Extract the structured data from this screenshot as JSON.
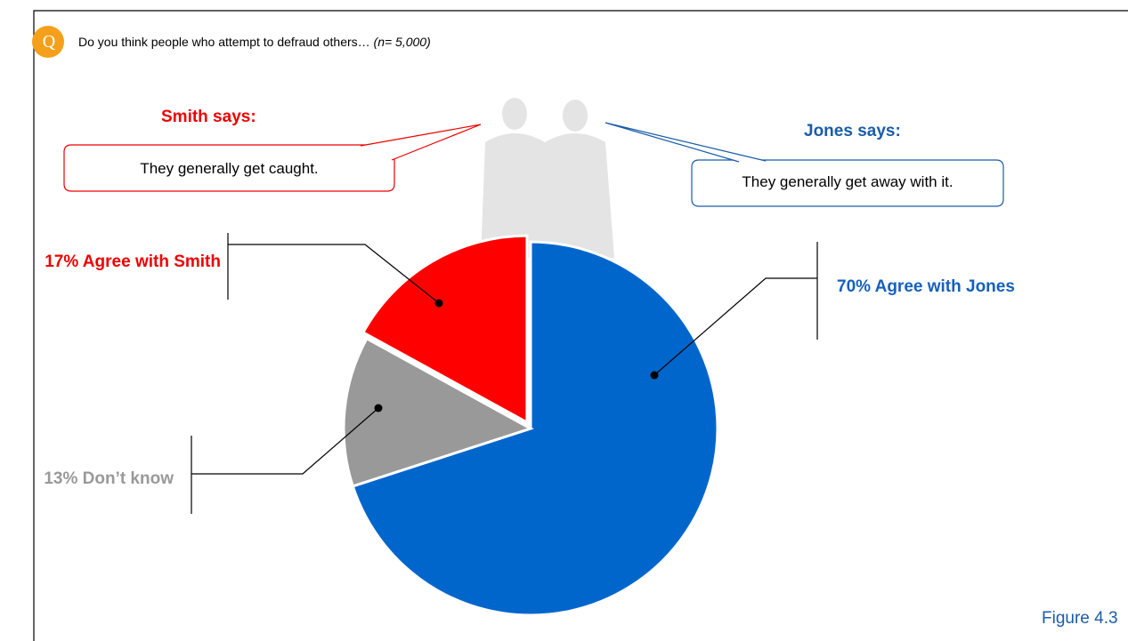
{
  "q_badge": "Q",
  "question": "Do you think people who attempt to defraud others…",
  "sample_size": "(n= 5,000)",
  "smith": {
    "heading": "Smith says:",
    "quote": "They generally get caught."
  },
  "jones": {
    "heading": "Jones says:",
    "quote": "They generally get away with it."
  },
  "figure": "Figure 4.3",
  "chart_data": {
    "type": "pie",
    "values": [
      70,
      13,
      17
    ],
    "value_labels": [
      "70% Agree with Jones",
      "13% Don’t know",
      "17% Agree with Smith"
    ],
    "colors": [
      "#0066CC",
      "#999999",
      "#FF0000"
    ],
    "label_colors": [
      "#1560BD",
      "#999999",
      "#EE0000"
    ]
  }
}
